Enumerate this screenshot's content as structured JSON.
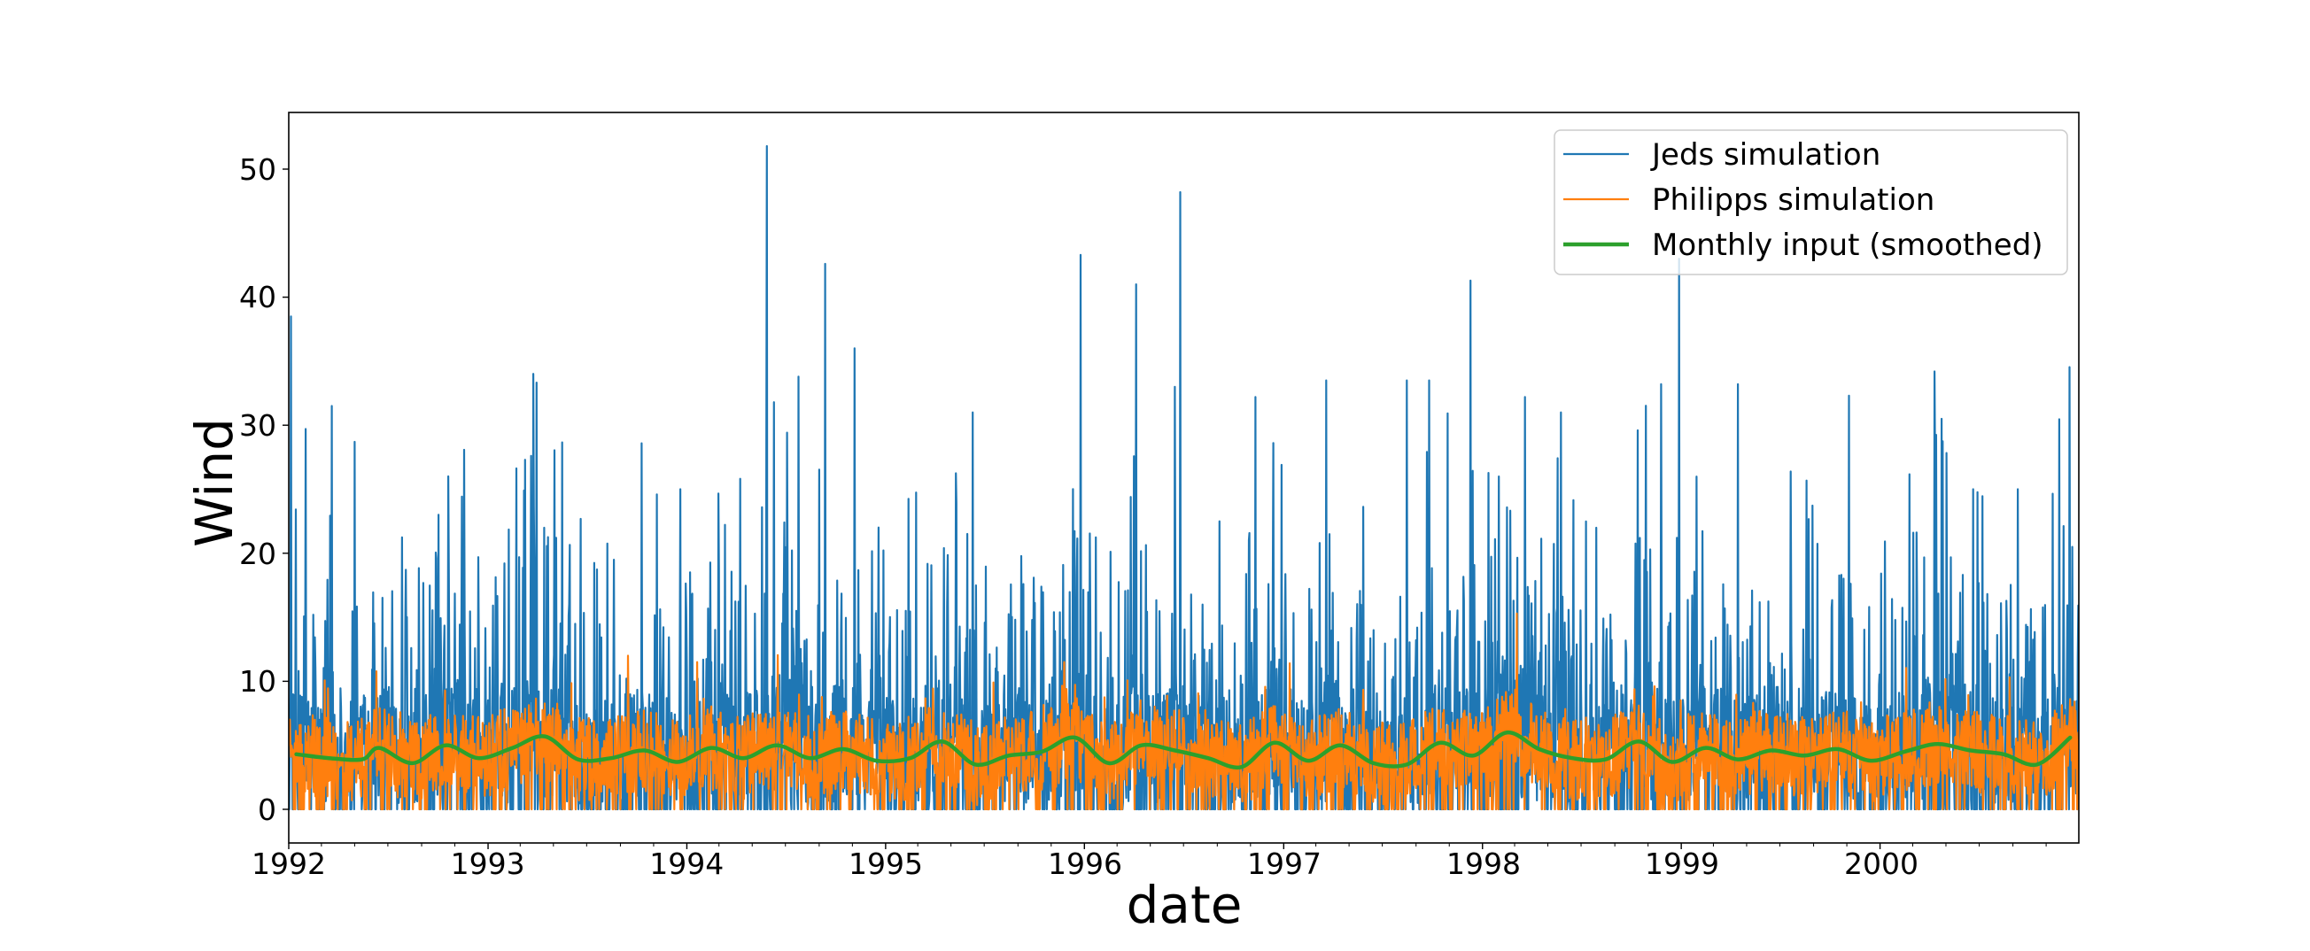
{
  "chart_data": {
    "type": "line",
    "title": "",
    "xlabel": "date",
    "ylabel": "Wind",
    "xlim": [
      "1992-01-01",
      "2000-12-31"
    ],
    "ylim": [
      -2.5,
      54
    ],
    "grid": false,
    "legend_position": "upper right",
    "x_ticks": [
      "1992",
      "1993",
      "1994",
      "1995",
      "1996",
      "1997",
      "1998",
      "1999",
      "2000"
    ],
    "y_ticks": [
      0,
      10,
      20,
      30,
      40,
      50
    ],
    "series": [
      {
        "name": "Jeds simulation",
        "color": "#1f77b4",
        "line_width": 2,
        "frequency": "daily",
        "description": "Highly intermittent series, mostly 0-15 with frequent spikes to 20-35",
        "baseline_range": [
          0,
          15
        ],
        "notable_peaks": [
          {
            "date": "1992-01-05",
            "value": 38.5
          },
          {
            "date": "1992-02-01",
            "value": 29.7
          },
          {
            "date": "1992-03-20",
            "value": 31.5
          },
          {
            "date": "1992-05-01",
            "value": 28.7
          },
          {
            "date": "1992-10-20",
            "value": 26.0
          },
          {
            "date": "1993-03-10",
            "value": 27.3
          },
          {
            "date": "1993-12-20",
            "value": 25.0
          },
          {
            "date": "1994-05-28",
            "value": 51.8
          },
          {
            "date": "1994-06-10",
            "value": 31.8
          },
          {
            "date": "1994-07-25",
            "value": 33.8
          },
          {
            "date": "1994-09-12",
            "value": 42.6
          },
          {
            "date": "1994-11-05",
            "value": 36.0
          },
          {
            "date": "1995-06-10",
            "value": 31.0
          },
          {
            "date": "1995-12-25",
            "value": 43.3
          },
          {
            "date": "1996-04-05",
            "value": 41.0
          },
          {
            "date": "1996-06-15",
            "value": 33.0
          },
          {
            "date": "1996-06-25",
            "value": 48.2
          },
          {
            "date": "1996-11-10",
            "value": 32.2
          },
          {
            "date": "1997-03-20",
            "value": 33.5
          },
          {
            "date": "1997-08-15",
            "value": 33.5
          },
          {
            "date": "1997-09-25",
            "value": 33.5
          },
          {
            "date": "1997-12-10",
            "value": 41.3
          },
          {
            "date": "1998-03-20",
            "value": 32.2
          },
          {
            "date": "1998-05-25",
            "value": 31.0
          },
          {
            "date": "1998-11-25",
            "value": 33.2
          },
          {
            "date": "1998-12-28",
            "value": 43.0
          },
          {
            "date": "1999-04-15",
            "value": 33.2
          },
          {
            "date": "1999-11-05",
            "value": 32.3
          },
          {
            "date": "2000-04-10",
            "value": 34.2
          },
          {
            "date": "2000-06-20",
            "value": 25.0
          },
          {
            "date": "2000-09-10",
            "value": 25.0
          }
        ]
      },
      {
        "name": "Philipps simulation",
        "color": "#ff7f0e",
        "line_width": 2,
        "frequency": "daily",
        "description": "Noisy series fluctuating around the monthly input, mostly 0-9, occasional peaks to ~11-15",
        "baseline_range": [
          0,
          9
        ],
        "notable_peaks": [
          {
            "date": "1993-09-15",
            "value": 12.0
          },
          {
            "date": "1994-01-20",
            "value": 11.5
          },
          {
            "date": "1995-11-25",
            "value": 11.5
          },
          {
            "date": "1998-03-05",
            "value": 15.3
          }
        ]
      },
      {
        "name": "Monthly input (smoothed)",
        "color": "#2ca02c",
        "line_width": 4,
        "frequency": "smoothed monthly",
        "x": [
          "1992-01",
          "1992-03",
          "1992-05",
          "1992-06",
          "1992-08",
          "1992-10",
          "1992-12",
          "1993-02",
          "1993-04",
          "1993-06",
          "1993-08",
          "1993-10",
          "1993-12",
          "1994-02",
          "1994-04",
          "1994-06",
          "1994-08",
          "1994-10",
          "1994-12",
          "1995-02",
          "1995-04",
          "1995-06",
          "1995-08",
          "1995-10",
          "1995-12",
          "1996-02",
          "1996-04",
          "1996-06",
          "1996-08",
          "1996-10",
          "1996-12",
          "1997-02",
          "1997-04",
          "1997-06",
          "1997-08",
          "1997-10",
          "1997-12",
          "1998-02",
          "1998-04",
          "1998-06",
          "1998-08",
          "1998-10",
          "1998-12",
          "1999-02",
          "1999-04",
          "1999-06",
          "1999-08",
          "1999-10",
          "1999-12",
          "2000-02",
          "2000-04",
          "2000-06",
          "2000-08",
          "2000-10",
          "2000-12"
        ],
        "values": [
          4.3,
          4.0,
          3.9,
          4.8,
          3.6,
          5.0,
          4.0,
          4.8,
          5.7,
          3.9,
          4.0,
          4.6,
          3.7,
          4.8,
          4.0,
          5.0,
          4.0,
          4.7,
          3.8,
          4.0,
          5.3,
          3.5,
          4.2,
          4.5,
          5.6,
          3.6,
          5.0,
          4.6,
          4.0,
          3.3,
          5.2,
          3.8,
          5.0,
          3.6,
          3.5,
          5.2,
          4.2,
          6.0,
          4.7,
          4.0,
          3.9,
          5.3,
          3.7,
          4.8,
          3.9,
          4.6,
          4.2,
          4.7,
          3.8,
          4.5,
          5.1,
          4.6,
          4.3,
          3.5,
          5.6
        ]
      }
    ]
  },
  "figure": {
    "ylabel": "Wind",
    "xlabel": "date",
    "ytick_labels": [
      "0",
      "10",
      "20",
      "30",
      "40",
      "50"
    ],
    "xtick_labels": [
      "1992",
      "1993",
      "1994",
      "1995",
      "1996",
      "1997",
      "1998",
      "1999",
      "2000"
    ],
    "legend": [
      {
        "label": "Jeds simulation",
        "color": "#1f77b4"
      },
      {
        "label": "Philipps simulation",
        "color": "#ff7f0e"
      },
      {
        "label": "Monthly input (smoothed)",
        "color": "#2ca02c"
      }
    ]
  }
}
